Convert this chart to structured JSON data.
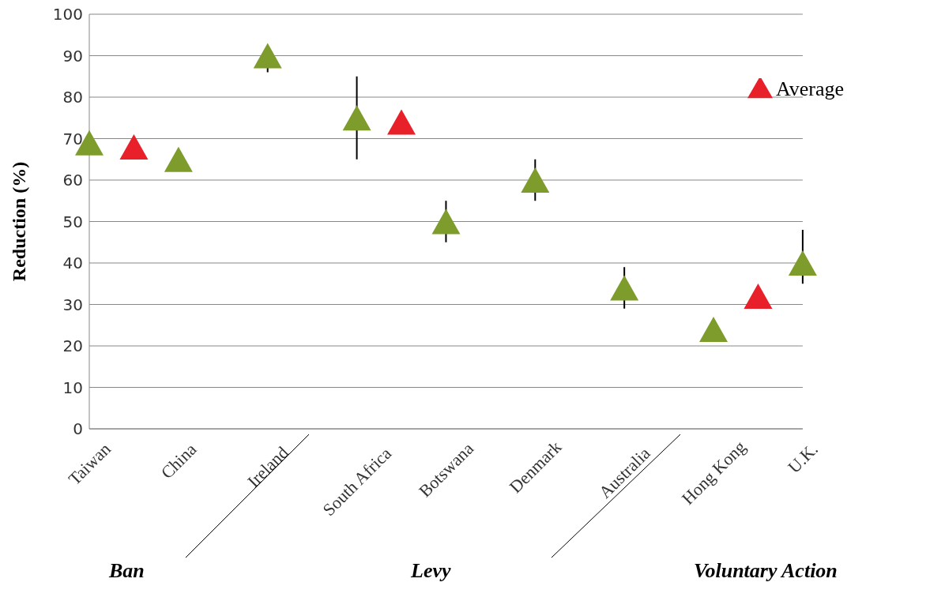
{
  "chart_data": {
    "type": "scatter",
    "ylabel": "Reduction (%)",
    "categories": [
      "Taiwan",
      null,
      "China",
      null,
      "Ireland",
      null,
      "South Africa",
      null,
      "Botswana",
      null,
      "Denmark",
      null,
      "Australia",
      null,
      "Hong Kong",
      null,
      "U.K."
    ],
    "series": [
      {
        "color": "#7d9c2c",
        "values": [
          69,
          null,
          65,
          null,
          90,
          null,
          75,
          null,
          50,
          null,
          60,
          null,
          34,
          null,
          24,
          null,
          40
        ],
        "errors": [
          null,
          null,
          null,
          null,
          [
            86,
            90
          ],
          null,
          [
            65,
            85
          ],
          null,
          [
            45,
            55
          ],
          null,
          [
            55,
            65
          ],
          null,
          [
            29,
            39
          ],
          null,
          null,
          null,
          [
            35,
            48
          ]
        ]
      },
      {
        "name": "Average",
        "color": "#e8202a",
        "values": [
          null,
          68,
          null,
          null,
          null,
          null,
          null,
          74,
          null,
          null,
          null,
          null,
          null,
          null,
          null,
          32,
          null
        ]
      }
    ],
    "ylim": [
      0,
      100
    ],
    "yticks": [
      0,
      10,
      20,
      30,
      40,
      50,
      60,
      70,
      80,
      90,
      100
    ],
    "grid": "y",
    "legend": "top right",
    "marker": "triangle",
    "annotations": [
      "Ban",
      "Levy",
      "Voluntary Action"
    ]
  }
}
